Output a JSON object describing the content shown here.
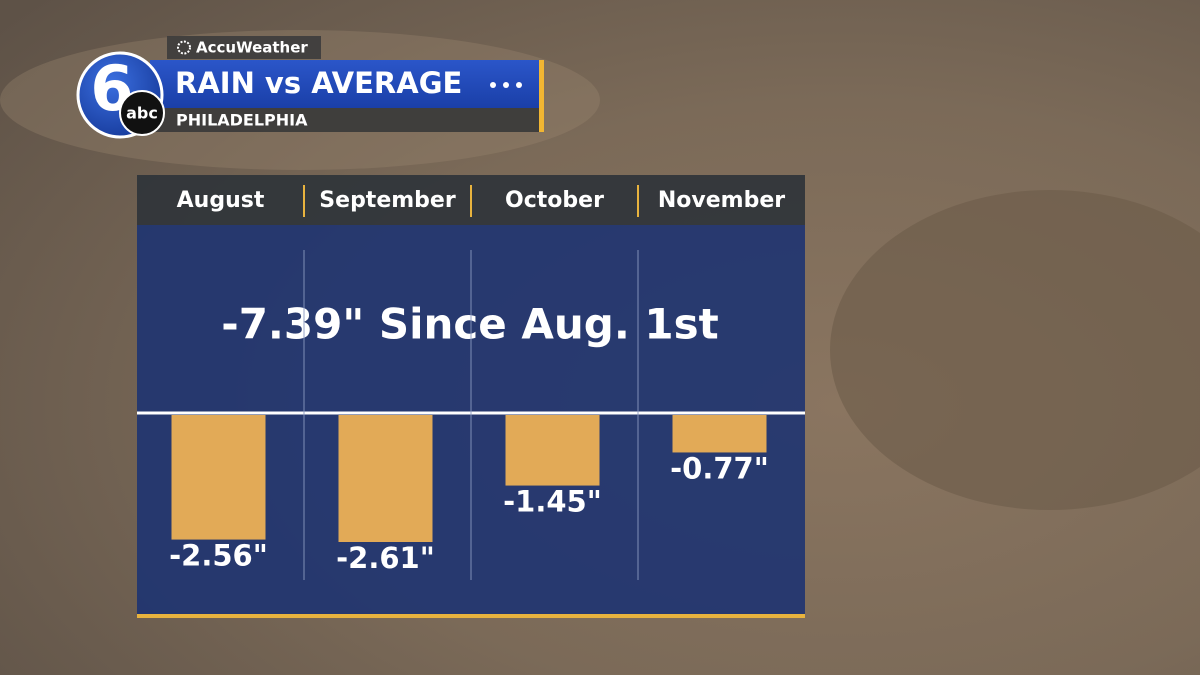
{
  "brand": "AccuWeather",
  "logo": {
    "number": "6",
    "network": "abc"
  },
  "chart_data": {
    "type": "bar",
    "title": "RAIN vs AVERAGE",
    "subtitle": "PHILADELPHIA",
    "annotation": "-7.39\" Since Aug. 1st",
    "categories": [
      "August",
      "September",
      "October",
      "November"
    ],
    "values": [
      -2.56,
      -2.61,
      -1.45,
      -0.77
    ],
    "value_labels": [
      "-2.56\"",
      "-2.61\"",
      "-1.45\"",
      "-0.77\""
    ],
    "color": "#e2aa57"
  }
}
